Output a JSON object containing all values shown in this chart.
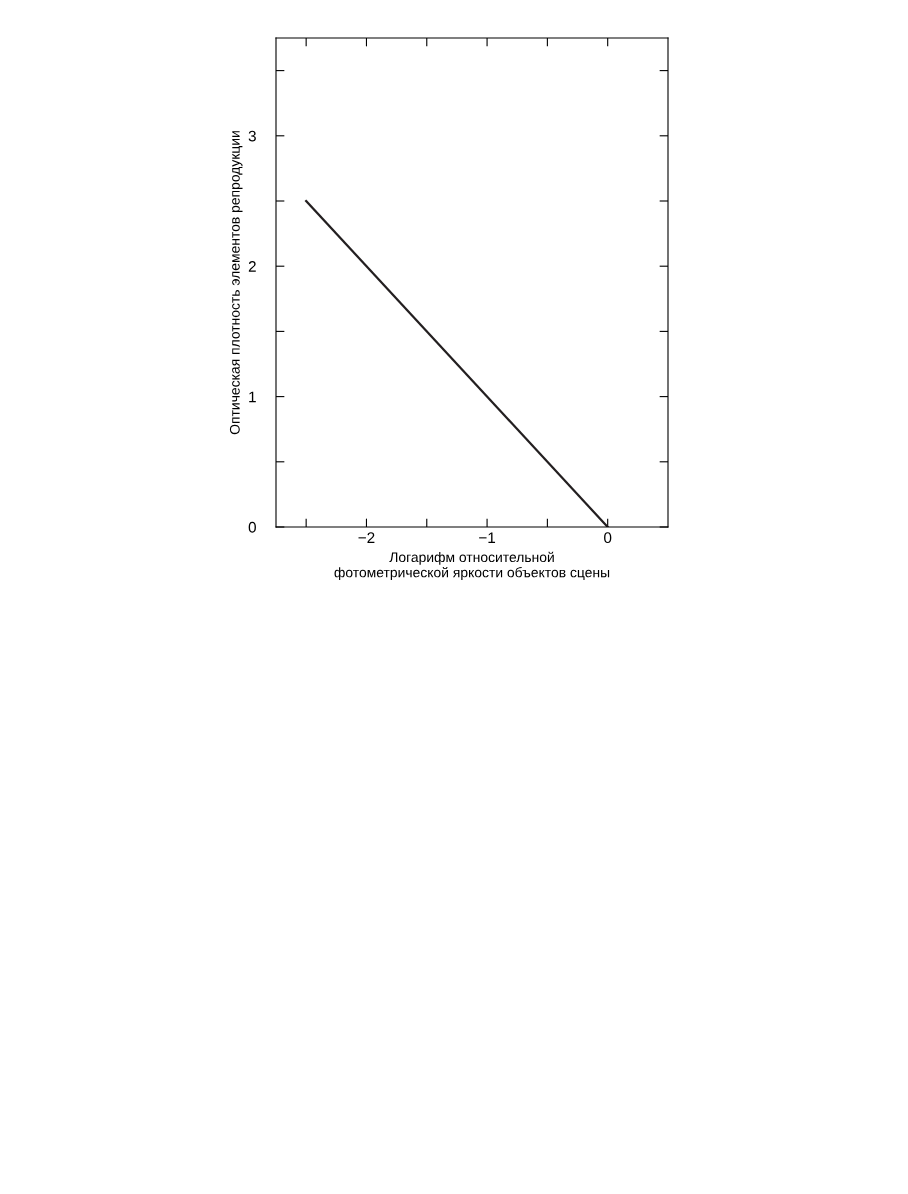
{
  "chart_data": {
    "type": "line",
    "xlabel": "Логарифм относительной\nфотометрической яркости объектов сцены",
    "ylabel": "Оптическая плотность элементов репродукции",
    "x": [
      -2.5,
      0
    ],
    "series": [
      {
        "color": "#231f20",
        "values": [
          2.5,
          0
        ]
      }
    ],
    "xlim": [
      -2.75,
      0.5
    ],
    "ylim": [
      0,
      3.75
    ],
    "xticks": [
      {
        "value": -2.5,
        "label": null
      },
      {
        "value": -2,
        "label": "−2"
      },
      {
        "value": -1.5,
        "label": null
      },
      {
        "value": -1,
        "label": "−1"
      },
      {
        "value": -0.5,
        "label": null
      },
      0
    ],
    "yticks": [
      0,
      {
        "value": 0.5,
        "label": null
      },
      1,
      {
        "value": 1.5,
        "label": null
      },
      2,
      {
        "value": 2.5,
        "label": null
      },
      3,
      {
        "value": 3.5,
        "label": null
      }
    ],
    "grid": false,
    "legend": false,
    "marker": "none",
    "line_style": "solid"
  }
}
